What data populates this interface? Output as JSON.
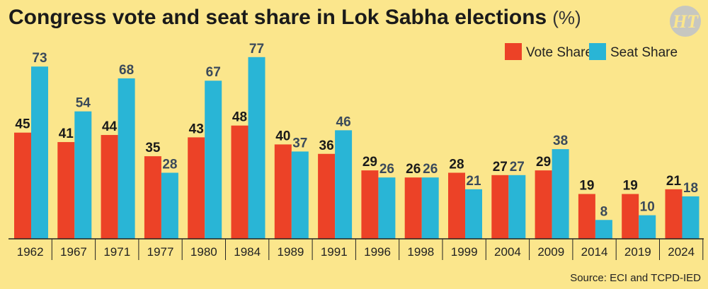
{
  "header": {
    "title": "Congress vote and seat share in Lok Sabha elections",
    "unit": "(%)",
    "logo_text": "HT"
  },
  "footer": {
    "source": "Source: ECI and TCPD-IED"
  },
  "colors": {
    "background": "#fbe68c",
    "vote_share": "#ec4227",
    "seat_share": "#29b5d6",
    "vote_label": "#1a1a1a",
    "seat_label": "#3b4a5a",
    "logo_bg": "#c7c7c0"
  },
  "chart_data": {
    "type": "bar",
    "categories": [
      "1962",
      "1967",
      "1971",
      "1977",
      "1980",
      "1984",
      "1989",
      "1991",
      "1996",
      "1998",
      "1999",
      "2004",
      "2009",
      "2014",
      "2019",
      "2024"
    ],
    "series": [
      {
        "name": "Vote Share",
        "values": [
          45,
          41,
          44,
          35,
          43,
          48,
          40,
          36,
          29,
          26,
          28,
          27,
          29,
          19,
          19,
          21
        ]
      },
      {
        "name": "Seat Share",
        "values": [
          73,
          54,
          68,
          28,
          67,
          77,
          37,
          46,
          26,
          26,
          21,
          27,
          38,
          8,
          10,
          18
        ]
      }
    ],
    "title": "Congress vote and seat share in Lok Sabha elections",
    "unit": "(%)",
    "ylim": [
      0,
      80
    ],
    "grid": false,
    "legend_position": "top-right",
    "data_labels": true
  }
}
